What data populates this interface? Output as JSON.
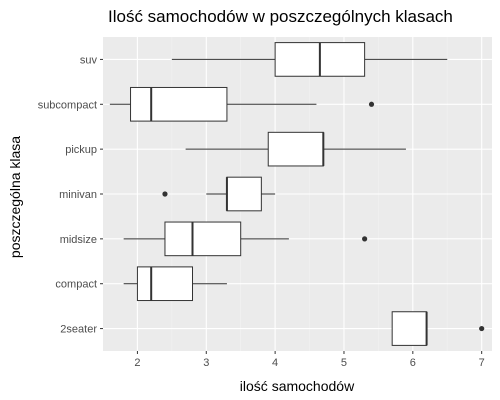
{
  "chart_data": {
    "type": "boxplot",
    "orientation": "horizontal",
    "title": "Ilość samochodów w poszczególnych klasach",
    "xlabel": "ilość samochodów",
    "ylabel": "poszczególna klasa",
    "xlim": [
      1.5,
      7.15
    ],
    "x_ticks": [
      2,
      3,
      4,
      5,
      6,
      7
    ],
    "grid": true,
    "legend": "none",
    "categories": [
      "2seater",
      "compact",
      "midsize",
      "minivan",
      "pickup",
      "subcompact",
      "suv"
    ],
    "boxes": [
      {
        "category": "2seater",
        "min": 5.7,
        "q1": 5.7,
        "median": 6.2,
        "q3": 6.2,
        "max": 6.2,
        "outliers": [
          7.0
        ]
      },
      {
        "category": "compact",
        "min": 1.8,
        "q1": 2.0,
        "median": 2.2,
        "q3": 2.8,
        "max": 3.3,
        "outliers": []
      },
      {
        "category": "midsize",
        "min": 1.8,
        "q1": 2.4,
        "median": 2.8,
        "q3": 3.5,
        "max": 4.2,
        "outliers": [
          5.3
        ]
      },
      {
        "category": "minivan",
        "min": 3.0,
        "q1": 3.3,
        "median": 3.3,
        "q3": 3.8,
        "max": 4.0,
        "outliers": [
          2.4
        ]
      },
      {
        "category": "pickup",
        "min": 2.7,
        "q1": 3.9,
        "median": 4.7,
        "q3": 4.7,
        "max": 5.9,
        "outliers": []
      },
      {
        "category": "subcompact",
        "min": 1.6,
        "q1": 1.9,
        "median": 2.2,
        "q3": 3.3,
        "max": 4.6,
        "outliers": [
          5.4
        ]
      },
      {
        "category": "suv",
        "min": 2.5,
        "q1": 4.0,
        "median": 4.65,
        "q3": 5.3,
        "max": 6.5,
        "outliers": []
      }
    ],
    "colors": {
      "panel": "#ebebeb",
      "grid_major": "#ffffff",
      "grid_minor": "#f2f2f2",
      "box_fill": "#ffffff",
      "stroke": "#333333",
      "tick_text": "#4d4d4d"
    }
  }
}
